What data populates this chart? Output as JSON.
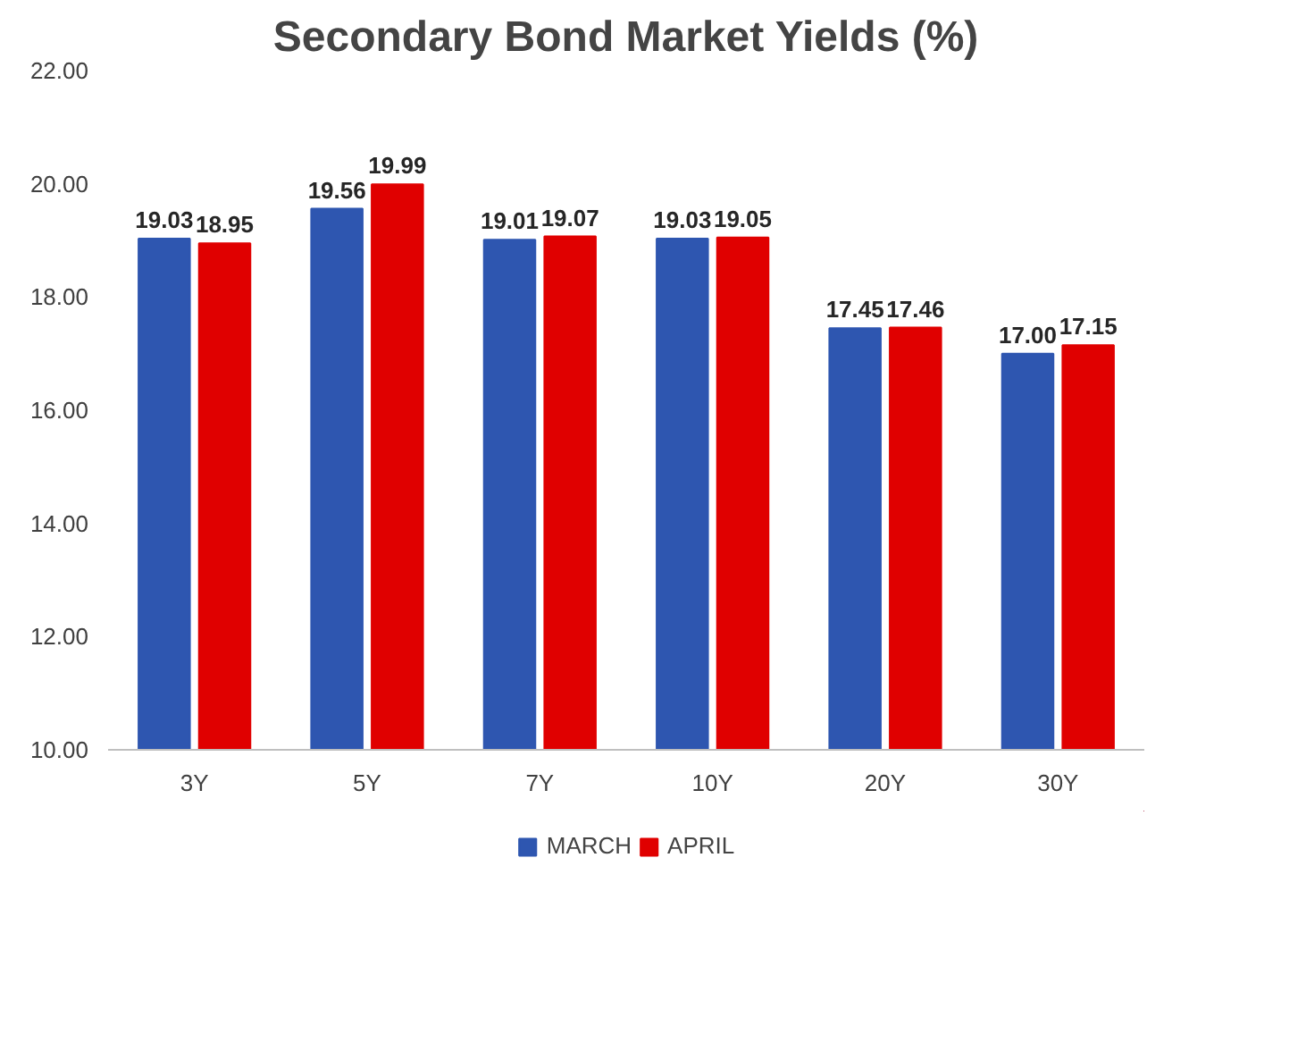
{
  "chart_data": {
    "type": "bar",
    "title": "Secondary Bond Market Yields (%)",
    "categories": [
      "3Y",
      "5Y",
      "7Y",
      "10Y",
      "20Y",
      "30Y"
    ],
    "series": [
      {
        "name": "MARCH",
        "color": "#2e56b0",
        "values": [
          19.03,
          19.56,
          19.01,
          19.03,
          17.45,
          17.0
        ]
      },
      {
        "name": "APRIL",
        "color": "#e00000",
        "values": [
          18.95,
          19.99,
          19.07,
          19.05,
          17.46,
          17.15
        ]
      }
    ],
    "value_labels": [
      [
        "19.03",
        "19.56",
        "19.01",
        "19.03",
        "17.45",
        "17.00"
      ],
      [
        "18.95",
        "19.99",
        "19.07",
        "19.05",
        "17.46",
        "17.15"
      ]
    ],
    "ylim": [
      10,
      22
    ],
    "yticks": [
      {
        "value": 10,
        "label": "10.00"
      },
      {
        "value": 12,
        "label": "12.00"
      },
      {
        "value": 14,
        "label": "14.00"
      },
      {
        "value": 16,
        "label": "16.00"
      },
      {
        "value": 18,
        "label": "18.00"
      },
      {
        "value": 20,
        "label": "20.00"
      },
      {
        "value": 22,
        "label": "22.00"
      }
    ],
    "legend": "bottom",
    "grid": false
  }
}
